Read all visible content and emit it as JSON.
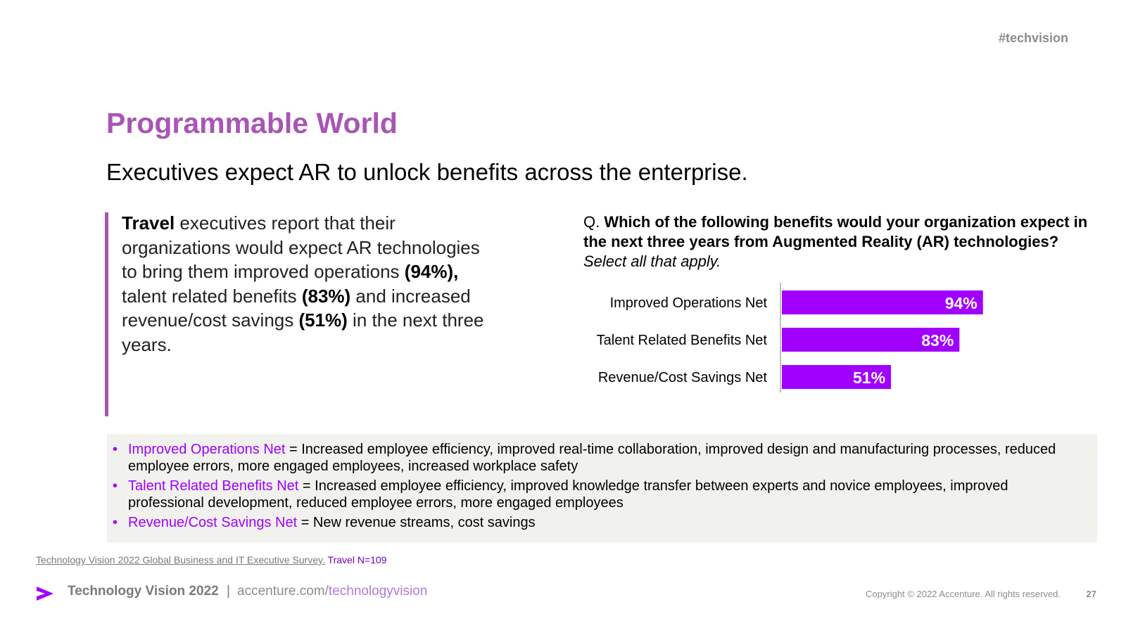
{
  "header": {
    "hashtag": "#techvision"
  },
  "title": "Programmable World",
  "subtitle": "Executives expect AR to unlock benefits across the enterprise.",
  "left_text": {
    "p1_bold": "Travel",
    "p1": " executives report that their organizations would expect AR technologies to bring them improved operations ",
    "v1": "(94%),",
    "p2": " talent related benefits ",
    "v2": "(83%)",
    "p3": " and increased revenue/cost savings ",
    "v3": "(51%)",
    "p4": " in the next three years."
  },
  "question": {
    "prefix": "Q. ",
    "bold": "Which of the following benefits would your organization expect in the next three years from Augmented Reality (AR) technologies?",
    "italic": " Select all that apply."
  },
  "chart_data": {
    "type": "bar",
    "orientation": "horizontal",
    "categories": [
      "Improved Operations Net",
      "Talent Related Benefits Net",
      "Revenue/Cost Savings Net"
    ],
    "values": [
      94,
      83,
      51
    ],
    "value_labels": [
      "94%",
      "83%",
      "51%"
    ],
    "xlim": [
      0,
      100
    ],
    "bar_color": "#a100ff"
  },
  "definitions": [
    {
      "term": "Improved Operations Net",
      "text": " = Increased employee efficiency, improved real-time collaboration, improved design and manufacturing processes, reduced employee errors, more engaged employees, increased workplace safety"
    },
    {
      "term": "Talent Related Benefits Net",
      "text": " = Increased employee efficiency, improved knowledge transfer between experts and novice employees, improved professional development, reduced employee errors, more engaged employees"
    },
    {
      "term": "Revenue/Cost Savings Net",
      "text": " = New revenue streams, cost savings"
    }
  ],
  "bullet_char": "•",
  "source": {
    "link": "Technology Vision 2022 Global Business and IT Executive Survey",
    "punct": ".",
    "n": " Travel N=109"
  },
  "footer": {
    "brand": "Technology Vision 2022",
    "separator": "|",
    "url_prefix": "accenture.com/",
    "url_accent": "technologyvision",
    "copyright": "Copyright © 2022 Accenture. All rights reserved.",
    "page": "27"
  }
}
